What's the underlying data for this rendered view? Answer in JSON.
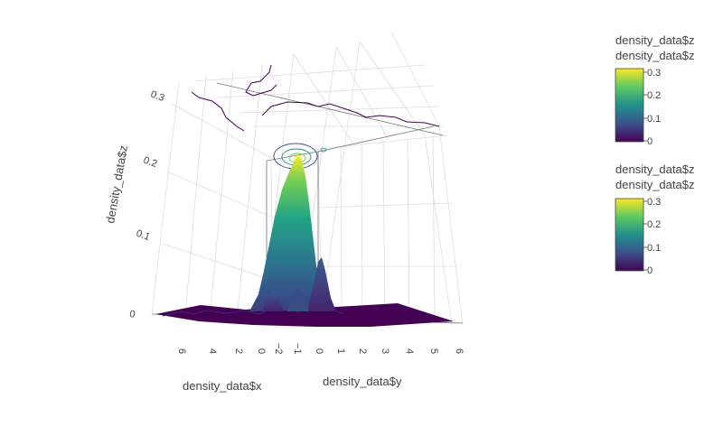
{
  "chart_data": {
    "type": "surface",
    "scene": {
      "x_axis": {
        "title": "density_data$x",
        "ticks": [
          "6",
          "4",
          "2",
          "0",
          "−2"
        ]
      },
      "y_axis": {
        "title": "density_data$y",
        "ticks": [
          "−1",
          "0",
          "1",
          "2",
          "3",
          "4",
          "5",
          "6"
        ]
      },
      "z_axis": {
        "title": "density_data$z",
        "ticks": [
          "0",
          "0.1",
          "0.2",
          "0.3"
        ]
      },
      "zlim": [
        0,
        0.3
      ]
    },
    "surface": {
      "peak": {
        "x": 0,
        "y": 0,
        "z": 0.3
      },
      "secondary_peaks_z": [
        0.05,
        0.07
      ],
      "base_z": 0
    },
    "colorscale": "Viridis",
    "colorscale_colors": [
      "#440154",
      "#3b528b",
      "#21908c",
      "#5dc963",
      "#fde725"
    ],
    "projections": [
      "contour on top z plane",
      "contour on back wall"
    ],
    "colorbars": [
      {
        "title_line1": "density_data$z",
        "title_line2": "density_data$z",
        "ticks": [
          "0.3",
          "0.2",
          "0.1",
          "0"
        ]
      },
      {
        "title_line1": "density_data$z",
        "title_line2": "density_data$z",
        "ticks": [
          "0.3",
          "0.2",
          "0.1",
          "0"
        ]
      }
    ]
  }
}
